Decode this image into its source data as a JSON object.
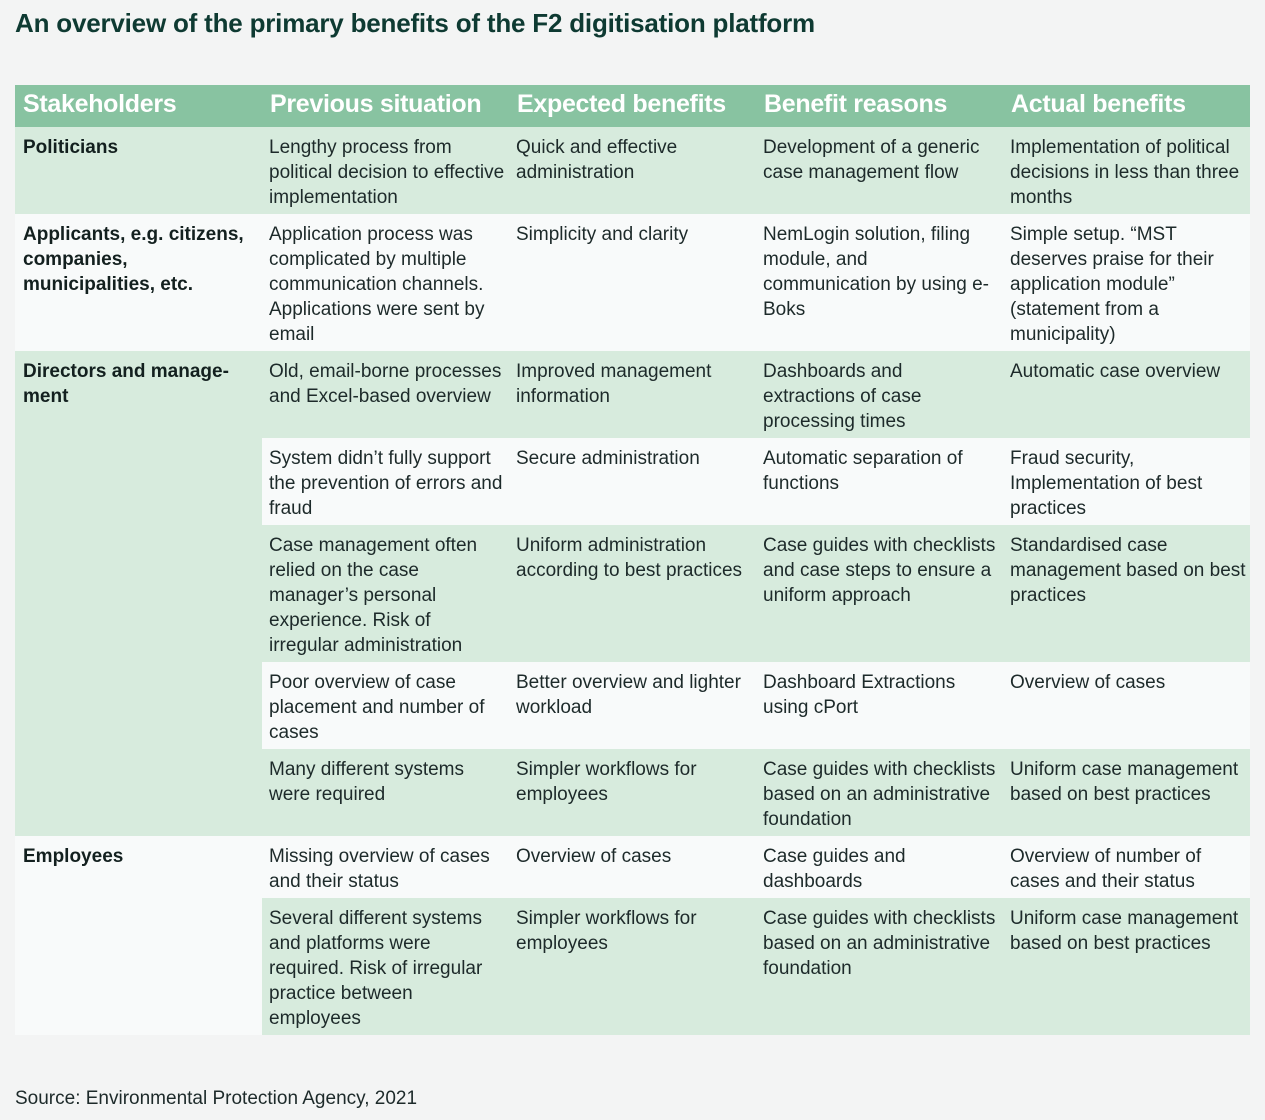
{
  "title": "An overview of the primary benefits of the F2 digitisation platform",
  "columns": [
    "Stakeholders",
    "Previous situation",
    "Expected benefits",
    "Benefit reasons",
    "Actual benefits"
  ],
  "groups": [
    {
      "stakeholder": "Politicians",
      "rows": [
        [
          "Lengthy process from political decision to effective implementation",
          "Quick and effective administration",
          "Development of a generic case management flow",
          "Implementation of political decisions in less than three months"
        ]
      ]
    },
    {
      "stakeholder": "Applicants, e.g. citizens, companies, municipalities, etc.",
      "rows": [
        [
          "Application process was complicated by multiple communication channels. Applications were sent by email",
          "Simplicity and clarity",
          "NemLogin solution, filing module, and communication by using e-Boks",
          "Simple setup. “MST deserves praise for their application module” (statement from a municipality)"
        ]
      ]
    },
    {
      "stakeholder": "Directors and manage-ment",
      "rows": [
        [
          "Old, email-borne processes and Excel-based overview",
          "Improved management information",
          "Dashboards and extractions of case processing times",
          "Automatic case overview"
        ],
        [
          "System didn’t fully support the prevention of errors and fraud",
          "Secure administration",
          "Automatic separation of functions",
          "Fraud security, Implementation of best practices"
        ],
        [
          "Case management often relied on the case manager’s personal experience. Risk of irregular administration",
          "Uniform administration according to best practices",
          "Case guides with checklists and case steps to ensure a uniform approach",
          "Standardised case management based on best practices"
        ],
        [
          "Poor overview of case placement and number of cases",
          "Better overview and lighter workload",
          "Dashboard Extractions using cPort",
          "Overview of cases"
        ],
        [
          "Many different systems were required",
          "Simpler workflows for employees",
          "Case guides with checklists based on an administrative foundation",
          "Uniform case management based on best practices"
        ]
      ]
    },
    {
      "stakeholder": "Employees",
      "rows": [
        [
          "Missing overview of cases and their status",
          "Overview of cases",
          "Case guides and dashboards",
          "Overview of number of cases and their status"
        ],
        [
          "Several different systems and platforms were required. Risk of irregular practice between employees",
          "Simpler workflows for employees",
          "Case guides with checklists based on an administrative foundation",
          "Uniform case management based on best practices"
        ]
      ]
    }
  ],
  "source": "Source: Environmental Protection Agency, 2021",
  "colors": {
    "header_bg": "#88c3a1",
    "row_green": "#d7ebdd",
    "row_white": "#f8fafa",
    "title_color": "#0e3a32"
  }
}
